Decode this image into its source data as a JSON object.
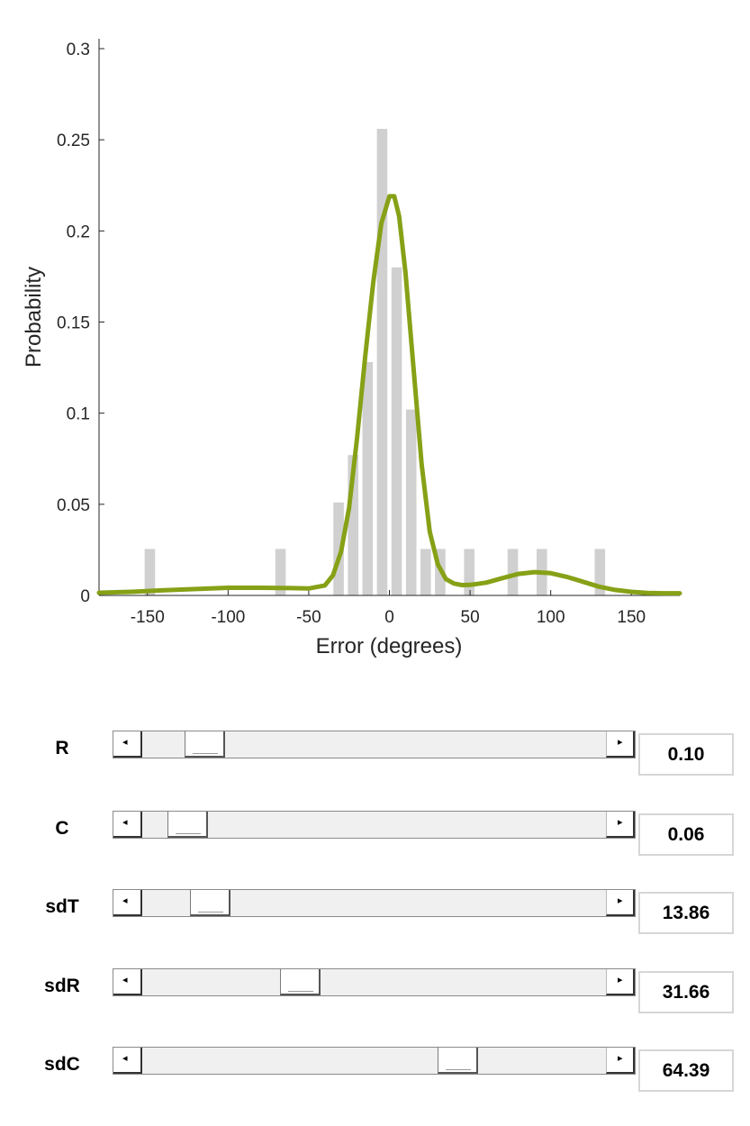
{
  "chart_data": {
    "type": "bar",
    "xlabel": "Error (degrees)",
    "ylabel": "Probability",
    "xlim": [
      -180,
      180
    ],
    "ylim": [
      0,
      0.3
    ],
    "x_ticks": [
      "-150",
      "-100",
      "-50",
      "0",
      "50",
      "100",
      "150"
    ],
    "x_tick_values": [
      -150,
      -100,
      -50,
      0,
      50,
      100,
      150
    ],
    "y_ticks": [
      "0",
      "0.05",
      "0.1",
      "0.15",
      "0.2",
      "0.25",
      "0.3"
    ],
    "y_tick_values": [
      0,
      0.05,
      0.1,
      0.15,
      0.2,
      0.25,
      0.3
    ],
    "bin_width": 9,
    "histogram": {
      "x": [
        -148.5,
        -67.5,
        -31.5,
        -22.5,
        -13.5,
        -4.5,
        4.5,
        13.5,
        22.5,
        31.5,
        49.5,
        76.5,
        94.5,
        130.5
      ],
      "values": [
        0.0255,
        0.0255,
        0.051,
        0.077,
        0.128,
        0.256,
        0.18,
        0.102,
        0.0255,
        0.0255,
        0.0255,
        0.0255,
        0.0255,
        0.0255
      ],
      "color": "#d0d0d0"
    },
    "model_fit": {
      "color": "#86a116",
      "x": [
        -180,
        -160,
        -140,
        -120,
        -100,
        -80,
        -60,
        -50,
        -40,
        -35,
        -30,
        -25,
        -20,
        -15,
        -10,
        -5,
        0,
        3,
        6,
        10,
        15,
        20,
        25,
        30,
        35,
        40,
        45,
        50,
        60,
        70,
        80,
        90,
        100,
        110,
        120,
        130,
        140,
        150,
        160,
        170,
        180
      ],
      "y": [
        0.0015,
        0.002,
        0.0028,
        0.0035,
        0.0042,
        0.0042,
        0.004,
        0.0038,
        0.0055,
        0.011,
        0.024,
        0.048,
        0.087,
        0.131,
        0.172,
        0.204,
        0.219,
        0.219,
        0.208,
        0.177,
        0.124,
        0.072,
        0.035,
        0.017,
        0.009,
        0.0065,
        0.0057,
        0.0058,
        0.007,
        0.0095,
        0.0118,
        0.0128,
        0.0122,
        0.0102,
        0.0075,
        0.0048,
        0.003,
        0.002,
        0.0014,
        0.0012,
        0.0012
      ]
    }
  },
  "controls": [
    {
      "label": "R",
      "value": "0.10",
      "position": 0.1
    },
    {
      "label": "C",
      "value": "0.06",
      "position": 0.06
    },
    {
      "label": "sdT",
      "value": "13.86",
      "position": 0.113
    },
    {
      "label": "sdR",
      "value": "31.66",
      "position": 0.324
    },
    {
      "label": "sdC",
      "value": "64.39",
      "position": 0.694
    }
  ],
  "icons": {
    "left_arrow": "left-arrow-icon",
    "right_arrow": "right-arrow-icon"
  }
}
